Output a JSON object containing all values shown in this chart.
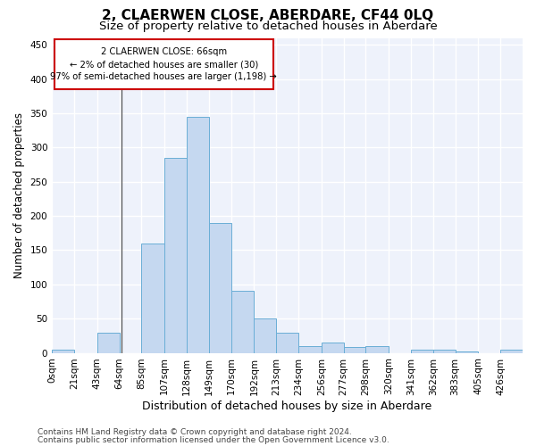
{
  "title": "2, CLAERWEN CLOSE, ABERDARE, CF44 0LQ",
  "subtitle": "Size of property relative to detached houses in Aberdare",
  "xlabel": "Distribution of detached houses by size in Aberdare",
  "ylabel": "Number of detached properties",
  "bar_color": "#c5d8f0",
  "bar_edge_color": "#6aaed6",
  "background_color": "#eef2fb",
  "grid_color": "#ffffff",
  "footer_line1": "Contains HM Land Registry data © Crown copyright and database right 2024.",
  "footer_line2": "Contains public sector information licensed under the Open Government Licence v3.0.",
  "annotation_line1": "2 CLAERWEN CLOSE: 66sqm",
  "annotation_line2": "← 2% of detached houses are smaller (30)",
  "annotation_line3": "97% of semi-detached houses are larger (1,198) →",
  "annotation_box_color": "#cc0000",
  "property_size": 66,
  "bar_heights": [
    4,
    0,
    30,
    0,
    160,
    285,
    345,
    190,
    90,
    50,
    30,
    10,
    15,
    8,
    10,
    0,
    5,
    5,
    2,
    0,
    5
  ],
  "bin_edges": [
    0,
    21,
    43,
    64,
    85,
    107,
    128,
    149,
    170,
    192,
    213,
    234,
    256,
    277,
    298,
    320,
    341,
    362,
    383,
    405,
    426,
    447
  ],
  "tick_labels": [
    "0sqm",
    "21sqm",
    "43sqm",
    "64sqm",
    "85sqm",
    "107sqm",
    "128sqm",
    "149sqm",
    "170sqm",
    "192sqm",
    "213sqm",
    "234sqm",
    "256sqm",
    "277sqm",
    "298sqm",
    "320sqm",
    "341sqm",
    "362sqm",
    "383sqm",
    "405sqm",
    "426sqm"
  ],
  "ylim": [
    0,
    460
  ],
  "yticks": [
    0,
    50,
    100,
    150,
    200,
    250,
    300,
    350,
    400,
    450
  ],
  "vline_x": 66,
  "title_fontsize": 11,
  "subtitle_fontsize": 9.5,
  "xlabel_fontsize": 9,
  "ylabel_fontsize": 8.5,
  "tick_fontsize": 7.5,
  "footer_fontsize": 6.5
}
